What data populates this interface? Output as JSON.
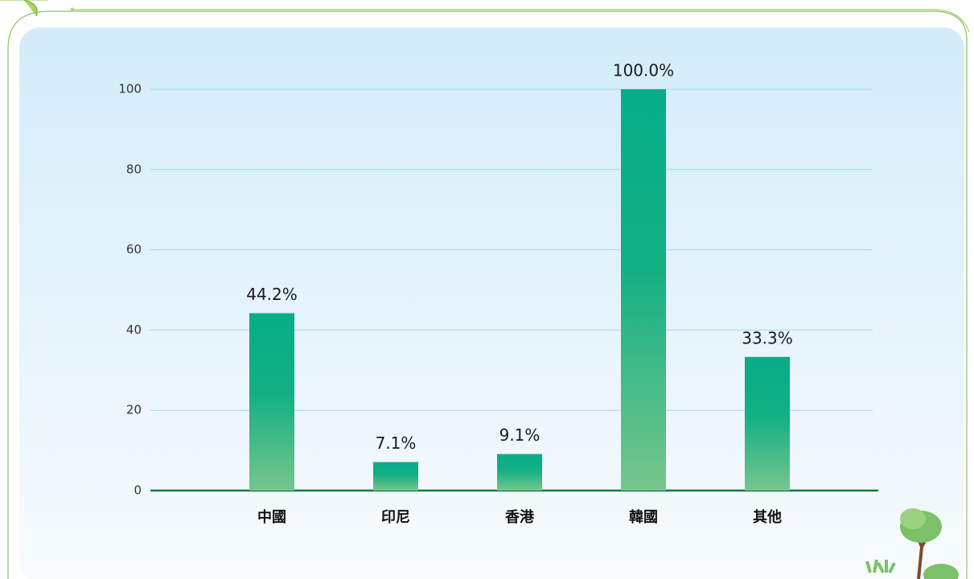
{
  "chart_data": {
    "type": "bar",
    "categories": [
      "中國",
      "印尼",
      "香港",
      "韓國",
      "其他"
    ],
    "values": [
      44.2,
      7.1,
      9.1,
      100,
      33.3
    ],
    "value_labels": [
      "44.2%",
      "7.1%",
      "9.1%",
      "100.0%",
      "33.3%"
    ],
    "color": "#0aae88",
    "ylim": [
      0,
      100
    ],
    "yticks": [
      0,
      20,
      40,
      60,
      80,
      100
    ],
    "grid": true
  }
}
